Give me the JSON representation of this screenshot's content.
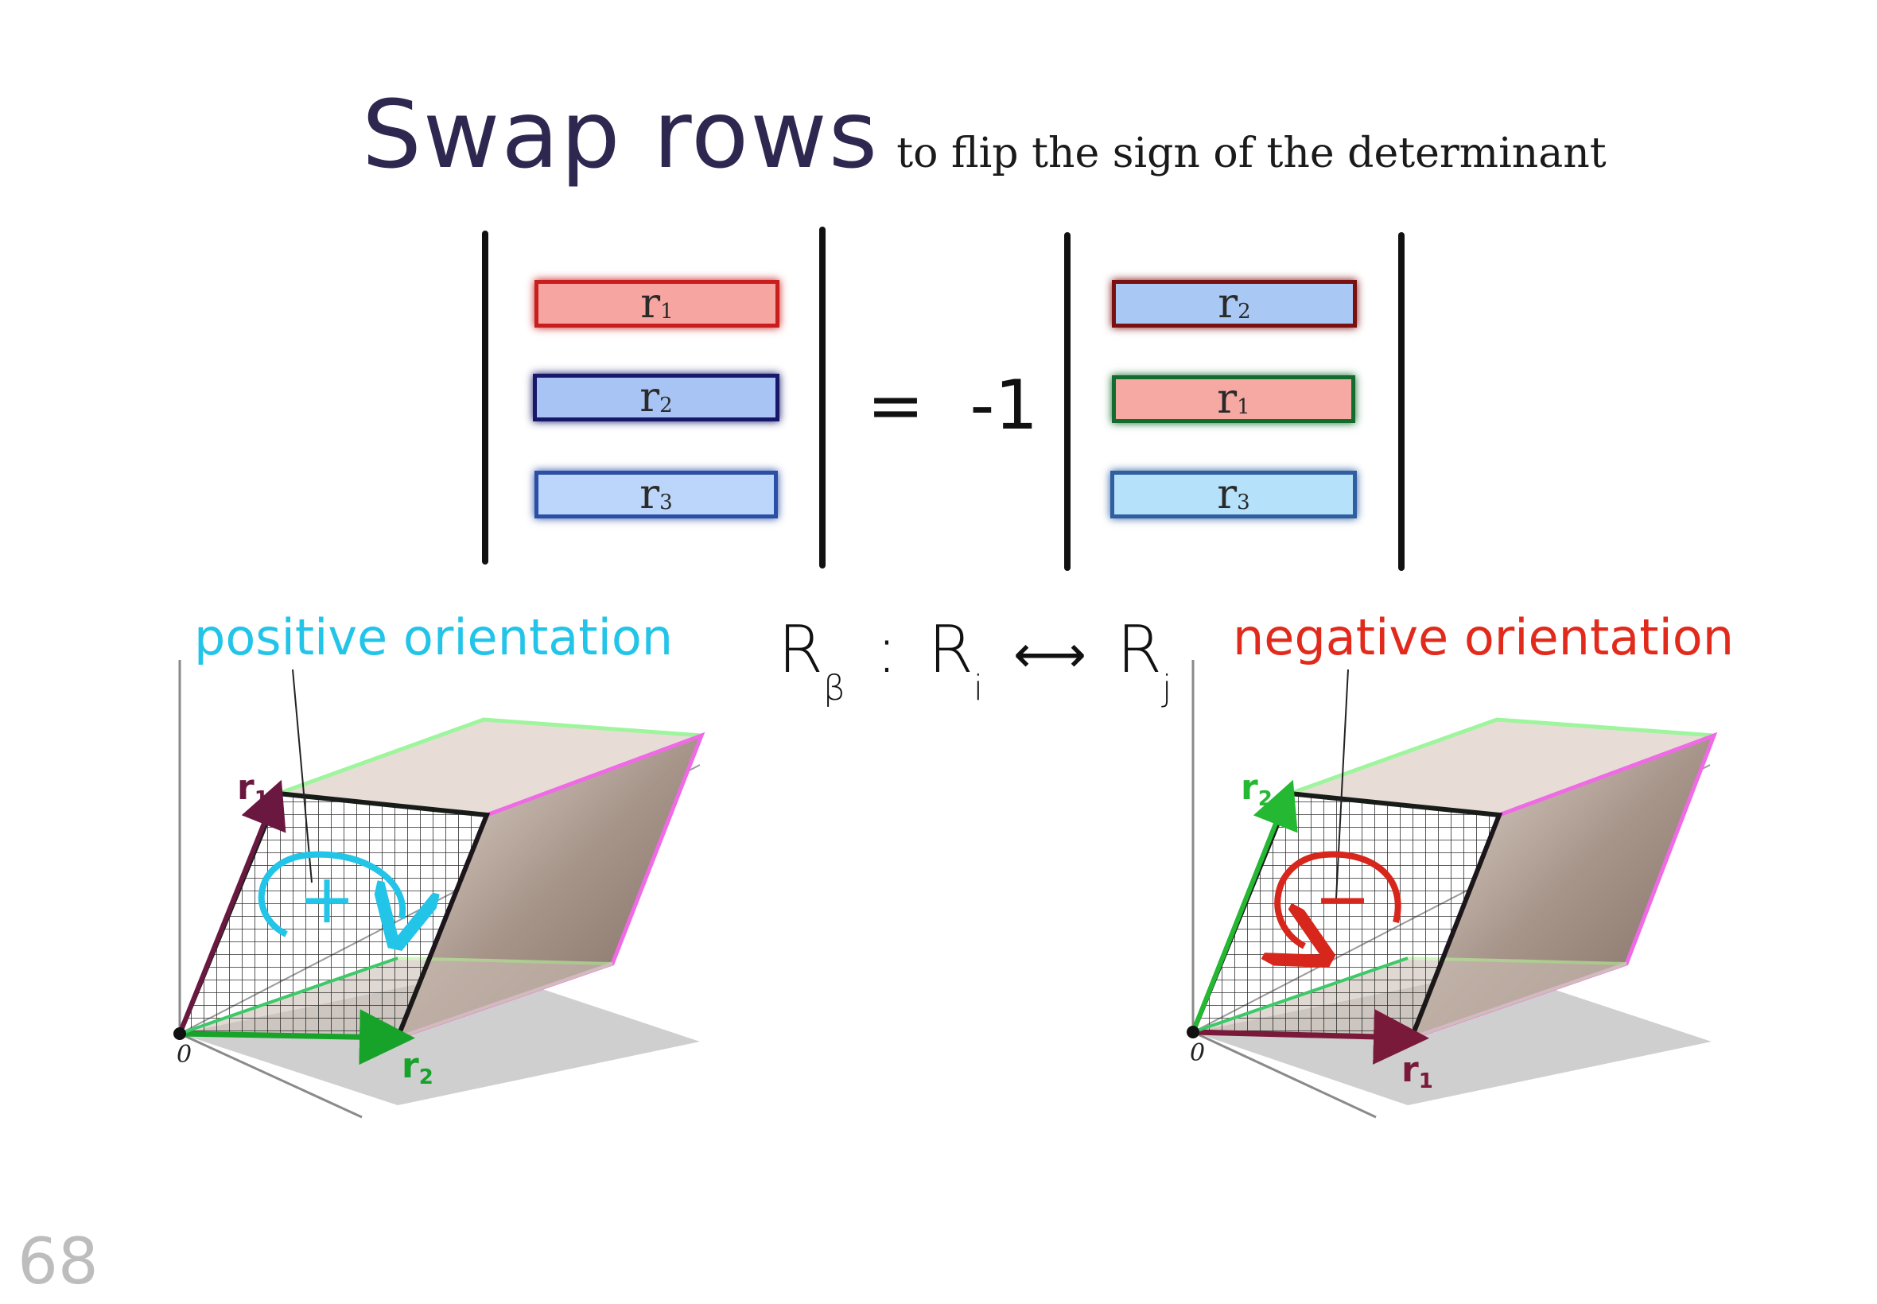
{
  "title": {
    "main": "Swap rows",
    "sub": "to flip the sign of the determinant"
  },
  "left_matrix": {
    "rows": [
      {
        "label": "r",
        "sub": "1",
        "fill": "#f7a5a0",
        "border": "#c81e1e"
      },
      {
        "label": "r",
        "sub": "2",
        "fill": "#a8c4f5",
        "border": "#18186b"
      },
      {
        "label": "r",
        "sub": "3",
        "fill": "#bcd5fa",
        "border": "#2b4fa5"
      }
    ]
  },
  "equation": {
    "equals": "=",
    "factor": "-1"
  },
  "right_matrix": {
    "rows": [
      {
        "label": "r",
        "sub": "2",
        "fill": "#a9c8f4",
        "border": "#7a1010"
      },
      {
        "label": "r",
        "sub": "1",
        "fill": "#f6a8a3",
        "border": "#136b2d"
      },
      {
        "label": "r",
        "sub": "3",
        "fill": "#b5e1fa",
        "border": "#2f5f9f"
      }
    ]
  },
  "operation": {
    "R": "R",
    "beta": "β",
    "colon": ":",
    "Ri": "R",
    "i": "i",
    "arrow": "⟷",
    "Rj": "R",
    "j": "j"
  },
  "left_figure": {
    "label": "positive orientation",
    "label_color": "#22c4e8",
    "sign": "+",
    "origin": "0",
    "vec_top": "r",
    "vec_top_sub": "1",
    "vec_top_color": "#6a1840",
    "vec_bottom": "r",
    "vec_bottom_sub": "2",
    "vec_bottom_color": "#17a32a"
  },
  "right_figure": {
    "label": "negative orientation",
    "label_color": "#e12a1c",
    "sign": "−",
    "origin": "0",
    "vec_top": "r",
    "vec_top_sub": "2",
    "vec_top_color": "#25b832",
    "vec_bottom": "r",
    "vec_bottom_sub": "1",
    "vec_bottom_color": "#7a1a3a"
  },
  "page_number": "68"
}
